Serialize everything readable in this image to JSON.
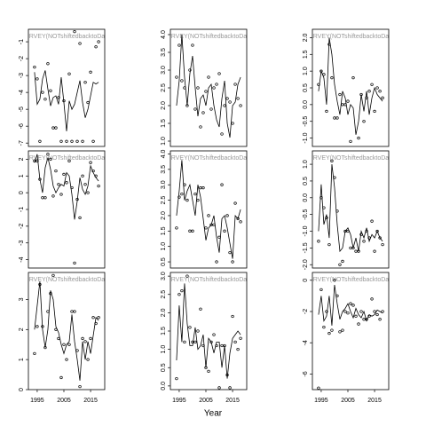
{
  "xlabel": "Year",
  "chart_data": [
    {
      "type": "scatter",
      "title": "SURVEY(NOTshiftedbacktoDate)",
      "xlim": [
        1991.7,
        2020.3
      ],
      "ylim": [
        -7.2,
        -0.26
      ],
      "yticks": [
        -7,
        -6,
        -5,
        -4,
        -3,
        -2,
        -1
      ],
      "x": [
        1994,
        1995,
        1996,
        1997,
        1998,
        1999,
        2000,
        2001,
        2002,
        2003,
        2004,
        2005,
        2006,
        2007,
        2008,
        2009,
        2010,
        2011,
        2012,
        2013,
        2014,
        2015,
        2016,
        2017,
        2018
      ],
      "series": [
        {
          "style": "points",
          "color": "#000000",
          "values": [
            -2.5,
            -3.2,
            -6.9,
            -4.0,
            -4.4,
            -2.3,
            -3.9,
            -6.1,
            -6.1,
            -4.3,
            -6.9,
            -4.5,
            -6.9,
            -2.9,
            -6.9,
            -0.4,
            -6.9,
            -1.1,
            -6.9,
            -3.4,
            -4.6,
            -2.8,
            -6.9,
            -1.3,
            -1.0
          ]
        },
        {
          "style": "line",
          "color": "#000000",
          "values": [
            -2.8,
            -4.7,
            -4.4,
            -3.2,
            -2.7,
            -3.8,
            -4.8,
            -4.3,
            -4.2,
            -4.7,
            -3.1,
            -4.6,
            -6.3,
            -4.5,
            -5.0,
            -4.7,
            -4.0,
            -3.3,
            -4.6,
            -5.5,
            -5.0,
            -4.2,
            -3.4,
            -3.5,
            -3.4
          ]
        }
      ]
    },
    {
      "type": "scatter",
      "title": "SURVEY(NOTshiftedbacktoDate)",
      "xlim": [
        1991.7,
        2020.3
      ],
      "ylim": [
        0.85,
        4.15
      ],
      "yticks": [
        {
          "value": 1,
          "label": "1.0"
        },
        1.5,
        {
          "value": 2,
          "label": "2.0"
        },
        2.5,
        {
          "value": 3,
          "label": "3.0"
        },
        3.5,
        {
          "value": 4,
          "label": "4.0"
        }
      ],
      "x": [
        1994,
        1995,
        1996,
        1997,
        1998,
        1999,
        2000,
        2001,
        2002,
        2003,
        2004,
        2005,
        2006,
        2007,
        2008,
        2009,
        2010,
        2011,
        2012,
        2013,
        2014,
        2015,
        2016,
        2017,
        2018
      ],
      "series": [
        {
          "style": "points",
          "color": "#000000",
          "values": [
            2.8,
            3.7,
            2.7,
            2.5,
            2.0,
            3.0,
            3.7,
            1.9,
            2.5,
            1.4,
            1.8,
            2.4,
            2.8,
            1.9,
            2.5,
            2.6,
            2.9,
            1.2,
            2.0,
            2.2,
            2.1,
            1.5,
            2.6,
            2.2,
            2.0
          ]
        },
        {
          "style": "line",
          "color": "#000000",
          "values": [
            2.0,
            2.7,
            4.0,
            2.8,
            2.0,
            2.9,
            3.4,
            2.5,
            1.7,
            2.2,
            2.3,
            2.0,
            2.5,
            2.6,
            2.0,
            1.6,
            1.4,
            2.2,
            2.7,
            1.5,
            1.1,
            2.0,
            2.1,
            2.6,
            2.8
          ]
        }
      ]
    },
    {
      "type": "scatter",
      "title": "SURVEY(NOTshiftedbacktoDate)",
      "xlim": [
        1991.7,
        2020.3
      ],
      "ylim": [
        -1.25,
        2.25
      ],
      "yticks": [
        {
          "value": -1,
          "label": "-1.0"
        },
        -0.5,
        {
          "value": 0,
          "label": "0.0"
        },
        0.5,
        {
          "value": 1,
          "label": "1.0"
        },
        1.5,
        {
          "value": 2,
          "label": "2.0"
        }
      ],
      "x": [
        1994,
        1995,
        1996,
        1997,
        1998,
        1999,
        2000,
        2001,
        2002,
        2003,
        2004,
        2005,
        2006,
        2007,
        2008,
        2009,
        2010,
        2011,
        2012,
        2013,
        2014,
        2015,
        2016,
        2017,
        2018
      ],
      "series": [
        {
          "style": "points",
          "color": "#000000",
          "values": [
            0.6,
            1.0,
            0.9,
            -0.2,
            1.8,
            0.8,
            -0.4,
            -0.4,
            0.3,
            0.0,
            0.0,
            0.1,
            -1.1,
            0.8,
            -1.3,
            -1.0,
            0.3,
            -0.5,
            0.2,
            0.4,
            0.6,
            -0.2,
            0.5,
            0.4,
            0.2
          ]
        },
        {
          "style": "line",
          "color": "#000000",
          "values": [
            0.4,
            1.0,
            0.8,
            0.0,
            2.0,
            1.5,
            0.6,
            0.1,
            -0.3,
            0.4,
            0.2,
            -0.3,
            0.0,
            -0.1,
            -0.9,
            -0.5,
            0.3,
            -0.2,
            0.4,
            -0.3,
            0.2,
            0.5,
            0.3,
            0.2,
            0.1
          ]
        }
      ]
    },
    {
      "type": "scatter",
      "title": "SURVEY(NOTshiftedbacktoDate)",
      "xlim": [
        1991.7,
        2020.3
      ],
      "ylim": [
        -4.5,
        2.5
      ],
      "yticks": [
        -4,
        -3,
        -2,
        -1,
        0,
        1,
        2
      ],
      "x": [
        1994,
        1995,
        1996,
        1997,
        1998,
        1999,
        2000,
        2001,
        2002,
        2003,
        2004,
        2005,
        2006,
        2007,
        2008,
        2009,
        2010,
        2011,
        2012,
        2013,
        2014,
        2015,
        2016,
        2017,
        2018
      ],
      "series": [
        {
          "style": "points",
          "color": "#000000",
          "values": [
            1.9,
            1.9,
            0.8,
            -0.3,
            -0.3,
            2.3,
            2.0,
            -0.2,
            1.3,
            0.5,
            -0.1,
            1.1,
            0.6,
            1.9,
            0.3,
            -4.2,
            -0.4,
            -1.5,
            1.0,
            0.5,
            0.0,
            1.8,
            1.3,
            1.0,
            0.4
          ]
        },
        {
          "style": "line",
          "color": "#000000",
          "values": [
            1.8,
            2.3,
            0.8,
            0.0,
            1.5,
            2.1,
            1.4,
            0.4,
            0.0,
            0.3,
            0.5,
            0.4,
            1.2,
            1.0,
            -0.1,
            -1.6,
            -0.5,
            0.9,
            0.2,
            -0.1,
            0.4,
            1.6,
            1.2,
            0.9,
            0.7
          ]
        }
      ]
    },
    {
      "type": "scatter",
      "title": "SURVEY(NOTshiftedbacktoDate)",
      "xlim": [
        1991.7,
        2020.3
      ],
      "ylim": [
        0.3,
        4.1
      ],
      "yticks": [
        0.5,
        {
          "value": 1,
          "label": "1.0"
        },
        1.5,
        {
          "value": 2,
          "label": "2.0"
        },
        2.5,
        {
          "value": 3,
          "label": "3.0"
        },
        3.5,
        {
          "value": 4,
          "label": "4.0"
        }
      ],
      "x": [
        1994,
        1995,
        1996,
        1997,
        1998,
        1999,
        2000,
        2001,
        2002,
        2003,
        2004,
        2005,
        2006,
        2007,
        2008,
        2009,
        2010,
        2011,
        2012,
        2013,
        2014,
        2015,
        2016,
        2017,
        2018
      ],
      "series": [
        {
          "style": "points",
          "color": "#000000",
          "values": [
            1.6,
            2.6,
            2.7,
            3.0,
            2.5,
            1.5,
            1.5,
            2.7,
            2.5,
            2.9,
            2.9,
            1.6,
            2.0,
            1.7,
            1.7,
            0.5,
            1.3,
            3.0,
            1.5,
            2.0,
            0.8,
            0.5,
            2.4,
            1.9,
            1.8
          ]
        },
        {
          "style": "line",
          "color": "#000000",
          "values": [
            2.0,
            2.8,
            3.8,
            2.5,
            2.8,
            3.0,
            2.5,
            2.0,
            3.0,
            2.6,
            1.9,
            1.2,
            1.6,
            1.7,
            2.0,
            1.3,
            0.8,
            1.9,
            2.0,
            1.6,
            1.1,
            0.6,
            2.0,
            1.9,
            2.2
          ]
        }
      ]
    },
    {
      "type": "scatter",
      "title": "SURVEY(NOTshiftedbacktoDate)",
      "xlim": [
        1991.7,
        2020.3
      ],
      "ylim": [
        -2.1,
        1.4
      ],
      "yticks": [
        {
          "value": -2,
          "label": "-2.0"
        },
        -1.5,
        {
          "value": -1,
          "label": "-1.0"
        },
        -0.5,
        {
          "value": 0,
          "label": "0.0"
        },
        0.5,
        {
          "value": 1,
          "label": "1.0"
        }
      ],
      "x": [
        1994,
        1995,
        1996,
        1997,
        1998,
        1999,
        2000,
        2001,
        2002,
        2003,
        2004,
        2005,
        2006,
        2007,
        2008,
        2009,
        2010,
        2011,
        2012,
        2013,
        2014,
        2015,
        2016,
        2017,
        2018
      ],
      "series": [
        {
          "style": "points",
          "color": "#000000",
          "values": [
            -1.3,
            0.0,
            -0.3,
            -0.6,
            -1.4,
            1.1,
            0.6,
            -0.4,
            -2.0,
            -1.9,
            -1.0,
            -1.0,
            -1.5,
            -1.5,
            -1.6,
            -1.6,
            -1.1,
            -1.3,
            -1.0,
            -1.2,
            -0.7,
            -1.6,
            -1.0,
            -1.2,
            -1.4
          ]
        },
        {
          "style": "line",
          "color": "#000000",
          "values": [
            -1.0,
            0.4,
            -0.8,
            -0.5,
            -1.2,
            1.0,
            0.3,
            -0.8,
            -1.6,
            -1.5,
            -1.0,
            -0.9,
            -1.1,
            -1.5,
            -1.2,
            -1.6,
            -1.0,
            -1.2,
            -0.9,
            -1.3,
            -1.1,
            -1.2,
            -1.0,
            -1.2,
            -1.3
          ]
        }
      ]
    },
    {
      "type": "scatter",
      "title": "SURVEY(NOTshiftedbacktoDate)",
      "xlim": [
        1991.7,
        2020.3
      ],
      "ylim": [
        0,
        3.9
      ],
      "yticks": [
        0,
        1,
        2,
        3
      ],
      "xticks": [
        1995,
        2005,
        2015
      ],
      "x": [
        1994,
        1995,
        1996,
        1997,
        1998,
        1999,
        2000,
        2001,
        2002,
        2003,
        2004,
        2005,
        2006,
        2007,
        2008,
        2009,
        2010,
        2011,
        2012,
        2013,
        2014,
        2015,
        2016,
        2017,
        2018
      ],
      "series": [
        {
          "style": "points",
          "color": "#000000",
          "values": [
            1.2,
            2.1,
            3.5,
            2.1,
            1.4,
            2.6,
            3.2,
            3.8,
            2.0,
            1.7,
            0.4,
            1.5,
            1.0,
            1.5,
            2.6,
            2.6,
            1.3,
            0.1,
            1.7,
            1.6,
            1.0,
            1.7,
            2.4,
            2.2,
            2.4
          ]
        },
        {
          "style": "line",
          "color": "#000000",
          "values": [
            2.0,
            2.8,
            3.6,
            2.0,
            1.4,
            2.0,
            3.3,
            3.0,
            2.1,
            1.9,
            1.5,
            1.2,
            1.5,
            1.6,
            2.5,
            1.6,
            1.0,
            0.3,
            1.6,
            1.0,
            1.6,
            1.2,
            1.8,
            2.4,
            2.3
          ]
        }
      ]
    },
    {
      "type": "scatter",
      "title": "SURVEY(NOTshiftedbacktoDate)",
      "xlim": [
        1991.7,
        2020.3
      ],
      "ylim": [
        -0.1,
        3.1
      ],
      "yticks": [
        {
          "value": 0,
          "label": "0.0"
        },
        0.5,
        {
          "value": 1,
          "label": "1.0"
        },
        1.5,
        {
          "value": 2,
          "label": "2.0"
        },
        2.5,
        {
          "value": 3,
          "label": "3.0"
        }
      ],
      "xticks": [
        1995,
        2005,
        2015
      ],
      "x": [
        1994,
        1995,
        1996,
        1997,
        1998,
        1999,
        2000,
        2001,
        2002,
        2003,
        2004,
        2005,
        2006,
        2007,
        2008,
        2009,
        2010,
        2011,
        2012,
        2013,
        2014,
        2015,
        2016,
        2017,
        2018
      ],
      "series": [
        {
          "style": "points",
          "color": "#000000",
          "values": [
            0.2,
            2.5,
            2.6,
            1.2,
            3.0,
            1.6,
            1.2,
            1.2,
            1.5,
            2.1,
            1.1,
            0.5,
            0.4,
            1.2,
            1.4,
            1.1,
            -0.05,
            1.1,
            1.1,
            0.3,
            -0.05,
            1.9,
            1.2,
            1.0,
            1.3
          ]
        },
        {
          "style": "line",
          "color": "#000000",
          "values": [
            0.7,
            2.2,
            1.2,
            2.8,
            1.7,
            1.1,
            1.1,
            1.6,
            1.0,
            1.1,
            1.4,
            0.5,
            1.3,
            1.2,
            0.9,
            1.2,
            1.2,
            0.5,
            1.1,
            0.2,
            0.9,
            1.3,
            1.4,
            1.5,
            1.4
          ]
        }
      ]
    },
    {
      "type": "scatter",
      "title": "SURVEY(NOTshiftedbacktoDate)",
      "xlim": [
        1991.7,
        2020.3
      ],
      "ylim": [
        -7,
        0.5
      ],
      "yticks": [
        -6,
        -4,
        -2,
        0
      ],
      "xticks": [
        1995,
        2005,
        2015
      ],
      "x": [
        1994,
        1995,
        1996,
        1997,
        1998,
        1999,
        2000,
        2001,
        2002,
        2003,
        2004,
        2005,
        2006,
        2007,
        2008,
        2009,
        2010,
        2011,
        2012,
        2013,
        2014,
        2015,
        2016,
        2017,
        2018
      ],
      "series": [
        {
          "style": "points",
          "color": "#000000",
          "values": [
            -6.9,
            -0.6,
            -3.0,
            -2.0,
            -3.4,
            -3.2,
            0.0,
            -1.0,
            -3.3,
            -3.2,
            -2.0,
            -2.1,
            -1.5,
            -1.6,
            -2.3,
            -2.8,
            -2.0,
            -2.5,
            -2.5,
            -2.3,
            -1.2,
            -2.0,
            -2.2,
            -2.5,
            -2.0
          ]
        },
        {
          "style": "line",
          "color": "#000000",
          "values": [
            -2.2,
            -1.0,
            -2.6,
            -2.3,
            -1.0,
            -2.9,
            -0.3,
            -1.5,
            -2.5,
            -2.0,
            -1.8,
            -1.5,
            -2.0,
            -2.4,
            -1.8,
            -2.2,
            -2.4,
            -2.0,
            -2.6,
            -2.2,
            -2.3,
            -2.2,
            -1.9,
            -2.0,
            -2.1
          ]
        }
      ]
    }
  ]
}
